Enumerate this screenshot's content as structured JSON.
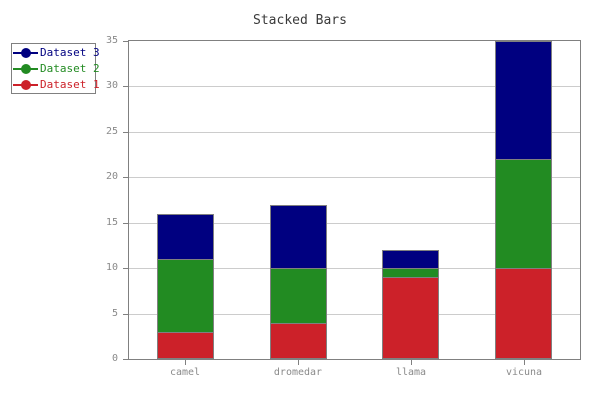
{
  "title": "Stacked Bars",
  "colors": {
    "background": "#ffffff",
    "frame": "#808080",
    "grid": "#cccccc",
    "tick": "#808080",
    "tick_label": "#8a8a8a",
    "title_text": "#3a3a3a",
    "legend_border": "#808080",
    "legend_background": "#ffffff"
  },
  "chart_data": {
    "type": "bar",
    "stacked": true,
    "title": "Stacked Bars",
    "xlabel": "",
    "ylabel": "",
    "categories": [
      "camel",
      "dromedar",
      "llama",
      "vicuna"
    ],
    "series": [
      {
        "name": "Dataset 1",
        "color": "#cc2129",
        "values": [
          3,
          4,
          9,
          10
        ]
      },
      {
        "name": "Dataset 2",
        "color": "#228b22",
        "values": [
          8,
          6,
          1,
          12
        ]
      },
      {
        "name": "Dataset 3",
        "color": "#000080",
        "values": [
          5,
          7,
          2,
          13
        ]
      }
    ],
    "stack_totals": [
      16,
      17,
      12,
      35
    ],
    "ylim": [
      0,
      35
    ],
    "yticks": [
      0,
      5,
      10,
      15,
      20,
      25,
      30,
      35
    ],
    "grid": true,
    "legend": {
      "position": "upper-left",
      "entries": [
        "Dataset 3",
        "Dataset 2",
        "Dataset 1"
      ]
    }
  }
}
